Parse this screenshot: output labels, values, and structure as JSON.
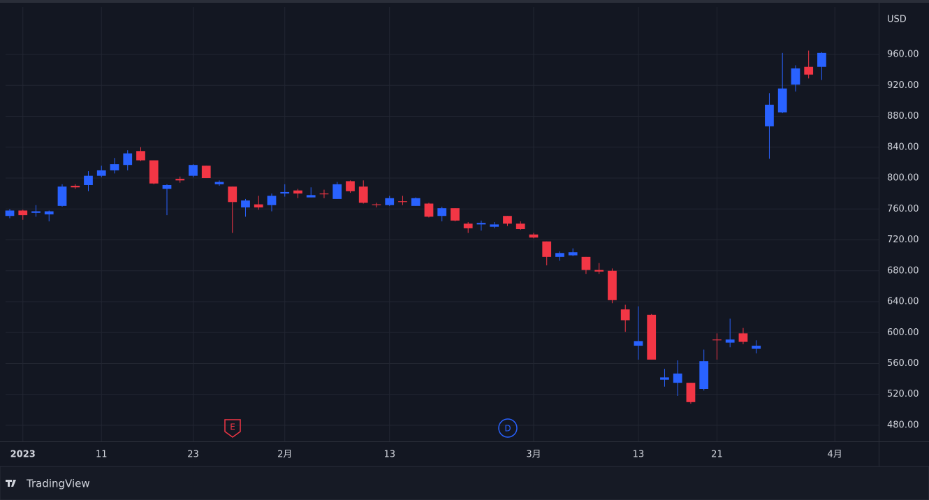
{
  "chart_data": {
    "type": "candlestick",
    "currency": "USD",
    "brand": "TradingView",
    "events": [
      "E",
      "D"
    ],
    "up_color": "#2962ff",
    "down_color": "#f23645",
    "open": [
      751,
      758,
      755,
      753,
      764,
      790,
      791,
      803,
      810,
      817,
      835,
      823,
      786,
      799,
      803,
      816,
      792,
      789,
      762,
      766,
      765,
      780,
      784,
      775,
      780,
      773,
      796,
      789,
      766,
      765,
      770,
      764,
      767,
      751,
      761,
      741,
      740,
      737,
      751,
      741,
      727,
      718,
      698,
      700,
      698,
      681,
      680,
      630,
      583,
      623,
      539,
      535,
      535,
      527,
      591,
      587,
      599,
      579,
      867,
      885,
      921,
      944,
      944
    ],
    "high": [
      760,
      759,
      765,
      758,
      792,
      792,
      809,
      816,
      826,
      836,
      840,
      823,
      792,
      802,
      818,
      816,
      797,
      789,
      773,
      777,
      780,
      792,
      786,
      788,
      785,
      795,
      797,
      797,
      768,
      777,
      777,
      775,
      768,
      763,
      761,
      743,
      745,
      743,
      751,
      744,
      729,
      718,
      705,
      709,
      698,
      690,
      683,
      636,
      634,
      624,
      553,
      564,
      535,
      578,
      599,
      618,
      606,
      590,
      910,
      962,
      946,
      965,
      963
    ],
    "low": [
      748,
      746,
      750,
      744,
      763,
      786,
      783,
      801,
      806,
      810,
      822,
      792,
      752,
      794,
      801,
      800,
      790,
      729,
      750,
      759,
      757,
      776,
      774,
      775,
      774,
      773,
      781,
      767,
      762,
      764,
      765,
      764,
      749,
      744,
      744,
      729,
      732,
      735,
      738,
      733,
      722,
      687,
      693,
      699,
      676,
      676,
      638,
      601,
      565,
      565,
      530,
      518,
      508,
      525,
      565,
      581,
      585,
      573,
      825,
      884,
      912,
      929,
      927
    ],
    "close": [
      758,
      752,
      757,
      757,
      789,
      788,
      803,
      810,
      818,
      832,
      823,
      793,
      791,
      797,
      817,
      800,
      795,
      769,
      771,
      762,
      777,
      782,
      780,
      778,
      779,
      792,
      783,
      768,
      765,
      774,
      769,
      774,
      750,
      761,
      745,
      735,
      742,
      740,
      741,
      734,
      723,
      698,
      703,
      704,
      681,
      679,
      642,
      616,
      589,
      565,
      542,
      547,
      510,
      563,
      590,
      591,
      588,
      583,
      895,
      916,
      942,
      934,
      962
    ],
    "xlim": [
      -0.32,
      66.35
    ],
    "xticks": [
      {
        "value": 1,
        "label": "2023"
      },
      {
        "value": 7,
        "label": "11"
      },
      {
        "value": 14,
        "label": "23"
      },
      {
        "value": 21,
        "label": "2月"
      },
      {
        "value": 29,
        "label": "13"
      },
      {
        "value": 40,
        "label": "3月"
      },
      {
        "value": 48,
        "label": "13"
      },
      {
        "value": 54,
        "label": "21"
      },
      {
        "value": 63,
        "label": "4月"
      }
    ],
    "ylim": [
      459.2,
      1021.5
    ],
    "yticks": [
      {
        "value": 480,
        "label": "480.00"
      },
      {
        "value": 520,
        "label": "520.00"
      },
      {
        "value": 560,
        "label": "560.00"
      },
      {
        "value": 600,
        "label": "600.00"
      },
      {
        "value": 640,
        "label": "640.00"
      },
      {
        "value": 680,
        "label": "680.00"
      },
      {
        "value": 720,
        "label": "720.00"
      },
      {
        "value": 760,
        "label": "760.00"
      },
      {
        "value": 800,
        "label": "800.00"
      },
      {
        "value": 840,
        "label": "840.00"
      },
      {
        "value": 880,
        "label": "880.00"
      },
      {
        "value": 920,
        "label": "920.00"
      },
      {
        "value": 960,
        "label": "960.00"
      }
    ],
    "grid": true
  }
}
